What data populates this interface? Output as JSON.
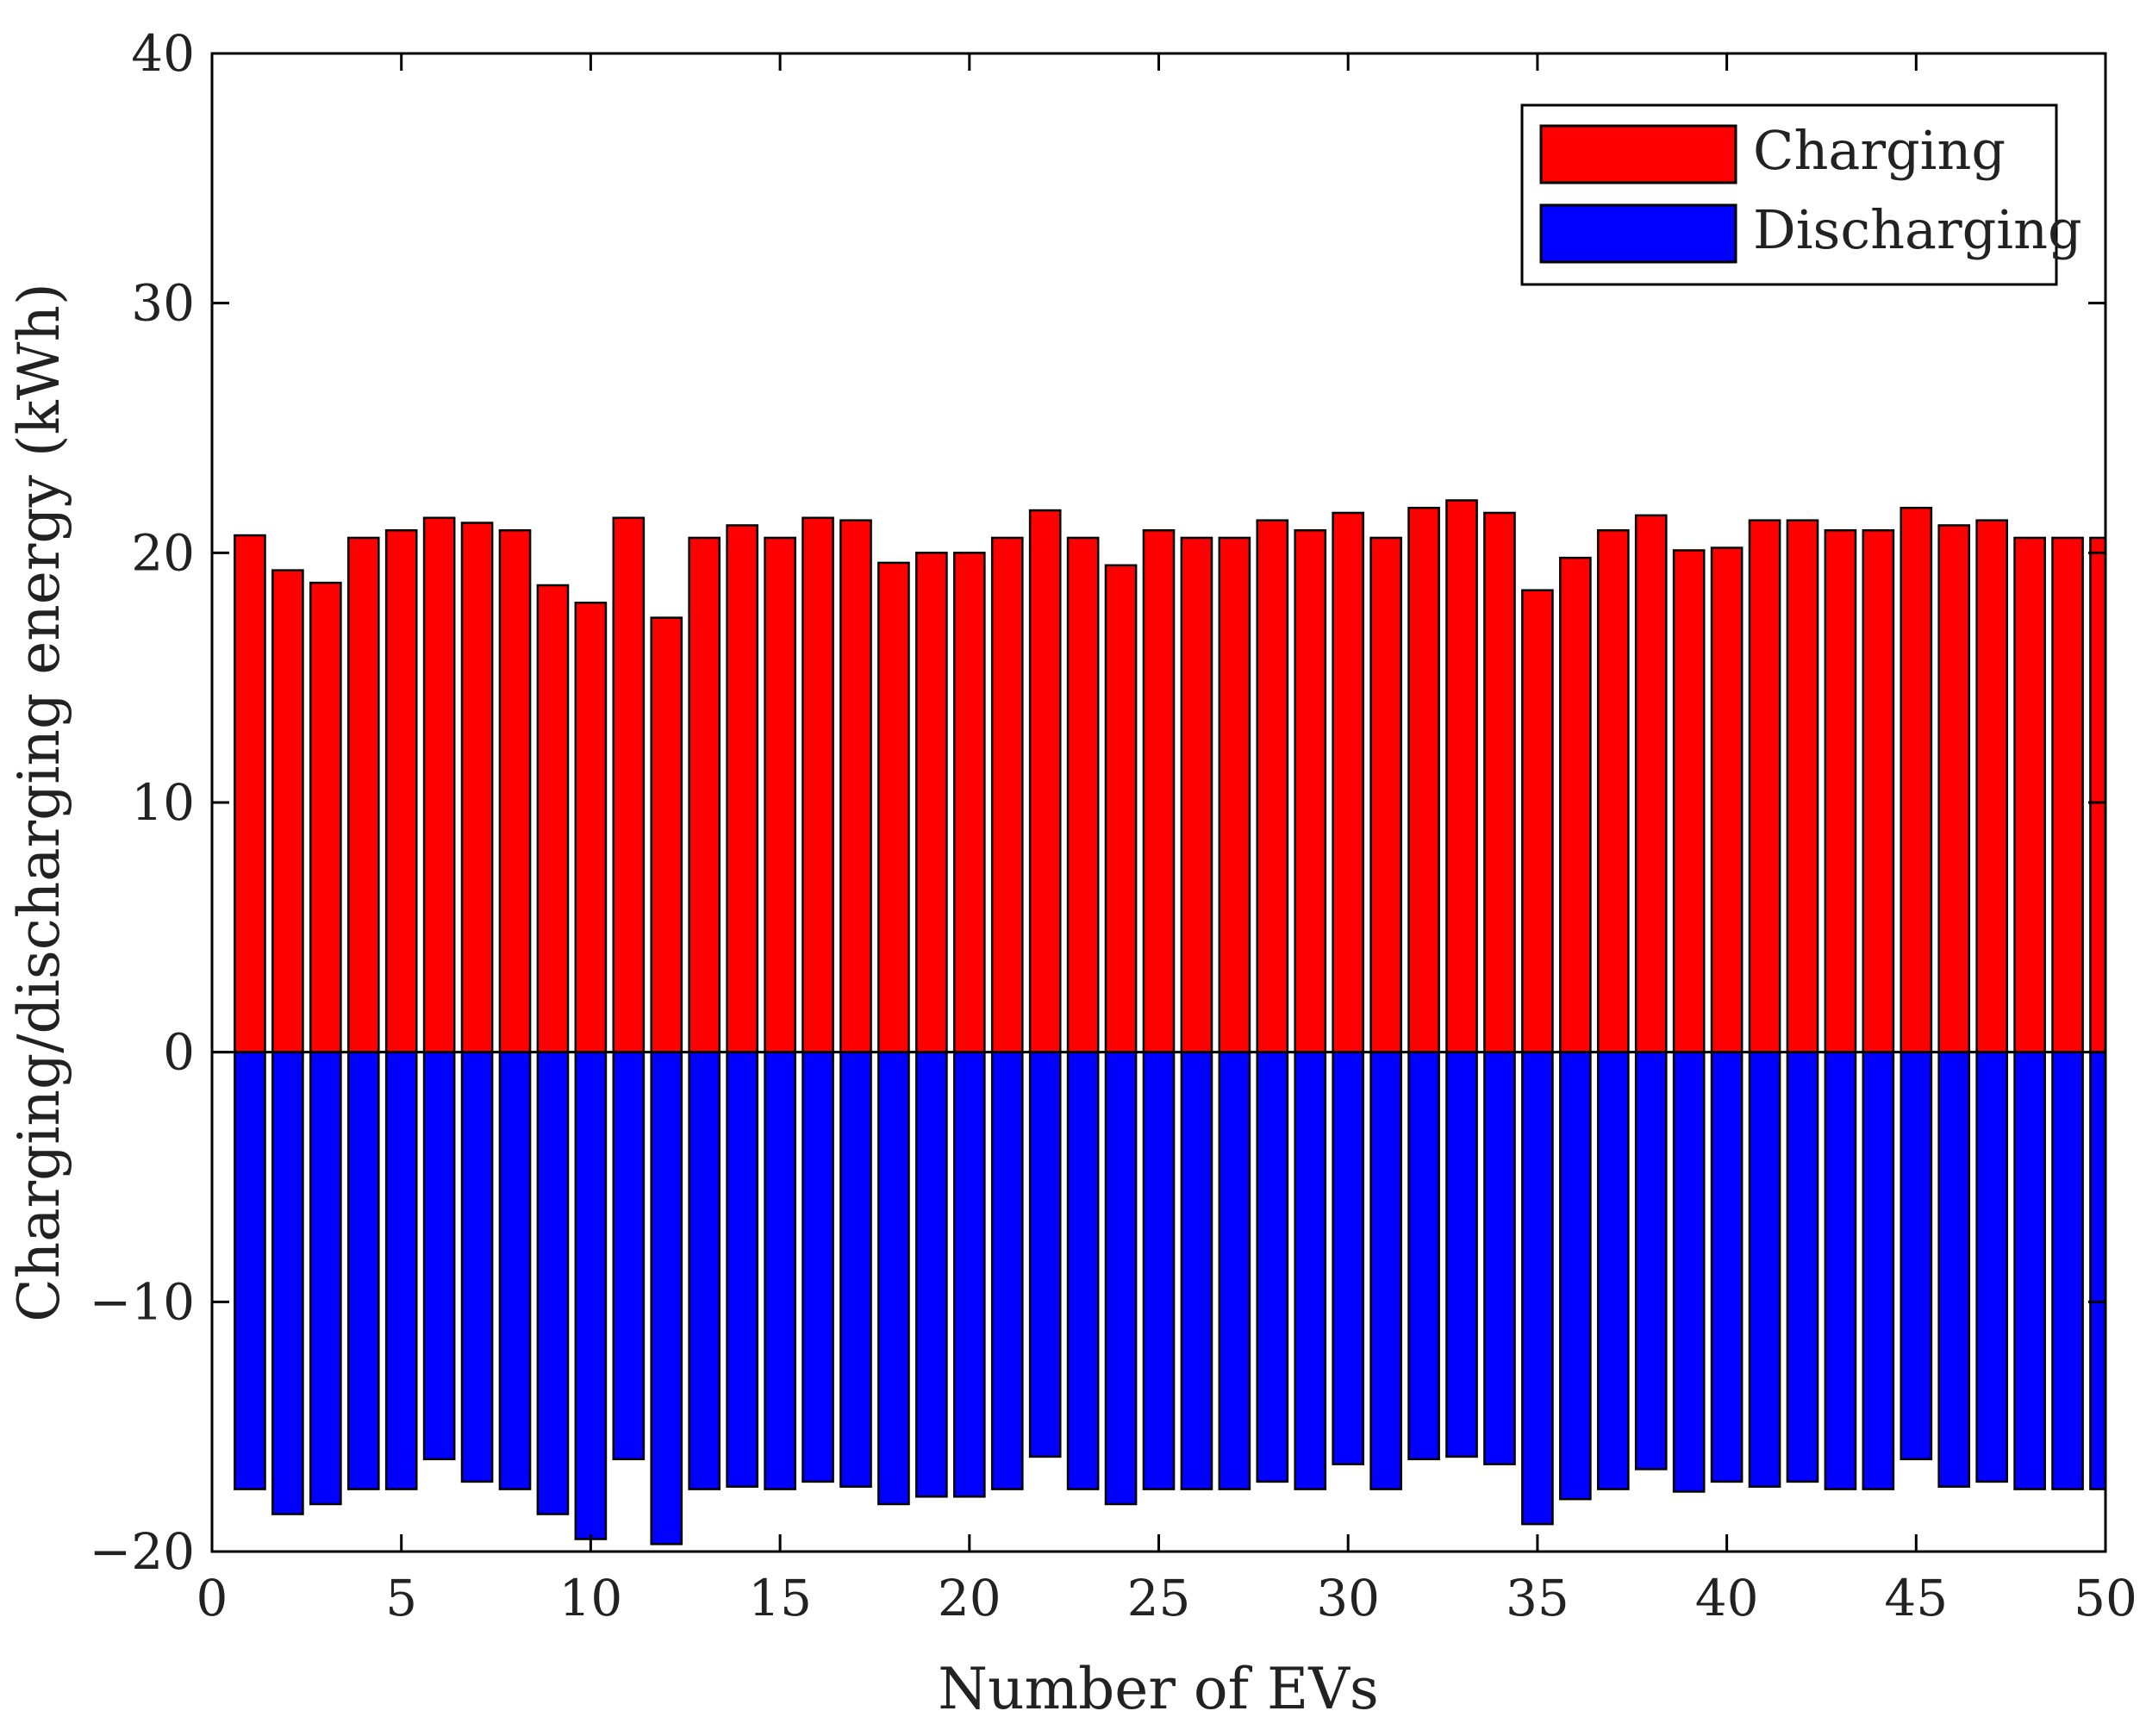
{
  "chart_data": {
    "type": "bar",
    "title": "",
    "xlabel": "Number of EVs",
    "ylabel": "Charging/discharging energy  (kWh)",
    "xlim": [
      0,
      50
    ],
    "ylim": [
      -20,
      40
    ],
    "xticks": [
      0,
      5,
      10,
      15,
      20,
      25,
      30,
      35,
      40,
      45,
      50
    ],
    "yticks": [
      -20,
      -10,
      0,
      10,
      20,
      30,
      40
    ],
    "xtick_labels": [
      "0",
      "5",
      "10",
      "15",
      "20",
      "25",
      "30",
      "35",
      "40",
      "45",
      "50"
    ],
    "ytick_labels": [
      "−20",
      "−10",
      "0",
      "10",
      "20",
      "30",
      "40"
    ],
    "grid": false,
    "legend_position": "top-right",
    "x": [
      1,
      2,
      3,
      4,
      5,
      6,
      7,
      8,
      9,
      10,
      11,
      12,
      13,
      14,
      15,
      16,
      17,
      18,
      19,
      20,
      21,
      22,
      23,
      24,
      25,
      26,
      27,
      28,
      29,
      30,
      31,
      32,
      33,
      34,
      35,
      36,
      37,
      38,
      39,
      40,
      41,
      42,
      43,
      44,
      45,
      46,
      47,
      48,
      49,
      50
    ],
    "series": [
      {
        "name": "Charging",
        "color": "#ff0000",
        "values": [
          20.7,
          19.3,
          18.8,
          20.6,
          20.9,
          21.4,
          21.2,
          20.9,
          18.7,
          18.0,
          21.4,
          17.4,
          20.6,
          21.1,
          20.6,
          21.4,
          21.3,
          19.6,
          20.0,
          20.0,
          20.6,
          21.7,
          20.6,
          19.5,
          20.9,
          20.6,
          20.6,
          21.3,
          20.9,
          21.6,
          20.6,
          21.8,
          22.1,
          21.6,
          18.5,
          19.8,
          20.9,
          21.5,
          20.1,
          20.2,
          21.3,
          21.3,
          20.9,
          20.9,
          21.8,
          21.1,
          21.3,
          20.6,
          20.6,
          20.6
        ]
      },
      {
        "name": "Discharging",
        "color": "#0000ff",
        "values": [
          -17.5,
          -18.5,
          -18.1,
          -17.5,
          -17.5,
          -16.3,
          -17.2,
          -17.5,
          -18.5,
          -19.5,
          -16.3,
          -19.7,
          -17.5,
          -17.4,
          -17.5,
          -17.2,
          -17.4,
          -18.1,
          -17.8,
          -17.8,
          -17.5,
          -16.2,
          -17.5,
          -18.1,
          -17.5,
          -17.5,
          -17.5,
          -17.2,
          -17.5,
          -16.5,
          -17.5,
          -16.3,
          -16.2,
          -16.5,
          -18.9,
          -17.9,
          -17.5,
          -16.7,
          -17.6,
          -17.2,
          -17.4,
          -17.2,
          -17.5,
          -17.5,
          -16.3,
          -17.4,
          -17.2,
          -17.5,
          -17.5,
          -17.5
        ]
      }
    ]
  }
}
